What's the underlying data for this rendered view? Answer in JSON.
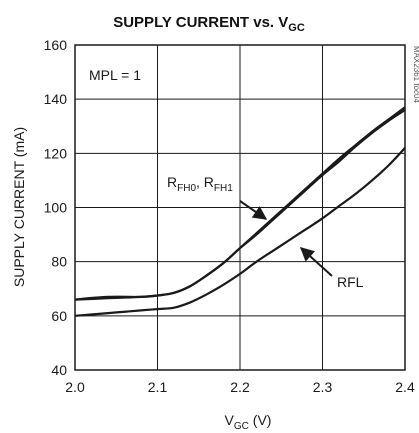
{
  "chart_data": {
    "type": "line",
    "title": {
      "main": "SUPPLY CURRENT vs. V",
      "sub": "GC"
    },
    "xlabel": {
      "main": "V",
      "sub": "GC",
      "suffix": " (V)"
    },
    "ylabel": "SUPPLY CURRENT (mA)",
    "xlim": [
      2.0,
      2.4
    ],
    "ylim": [
      40,
      160
    ],
    "xticks": [
      "2.0",
      "2.1",
      "2.2",
      "2.3",
      "2.4"
    ],
    "yticks": [
      "40",
      "60",
      "80",
      "100",
      "120",
      "140",
      "160"
    ],
    "grid": true,
    "legend": "none",
    "condition_label": "MPL = 1",
    "figure_id": "MAX2361 toc04",
    "series": [
      {
        "x": [
          2.0,
          2.04,
          2.08,
          2.1,
          2.12,
          2.14,
          2.16,
          2.18,
          2.2,
          2.22,
          2.24,
          2.26,
          2.28,
          2.3,
          2.32,
          2.34,
          2.36,
          2.38,
          2.4
        ],
        "y": [
          66,
          66.5,
          67,
          67.5,
          68.5,
          71,
          75,
          79.5,
          85,
          90,
          95.5,
          101,
          106.5,
          112,
          117,
          122.5,
          127.5,
          132,
          136
        ]
      },
      {
        "x": [
          2.0,
          2.04,
          2.08,
          2.1,
          2.12,
          2.14,
          2.16,
          2.18,
          2.2,
          2.22,
          2.24,
          2.26,
          2.28,
          2.3,
          2.32,
          2.34,
          2.36,
          2.38,
          2.4
        ],
        "y": [
          66,
          67,
          67,
          67.5,
          68.5,
          71,
          75,
          79.5,
          85,
          90.5,
          96,
          101.5,
          107,
          112.5,
          118,
          123,
          128,
          132.5,
          137
        ]
      },
      {
        "x": [
          2.0,
          2.04,
          2.08,
          2.1,
          2.12,
          2.14,
          2.16,
          2.18,
          2.2,
          2.22,
          2.24,
          2.26,
          2.28,
          2.3,
          2.32,
          2.34,
          2.36,
          2.38,
          2.4
        ],
        "y": [
          60,
          61,
          62,
          62.5,
          63,
          65,
          68,
          71.5,
          75.5,
          80,
          84,
          88,
          92,
          96,
          100.5,
          105,
          110,
          115.5,
          122
        ]
      }
    ],
    "annotations": [
      {
        "parts": [
          {
            "text": "R",
            "sub": false
          },
          {
            "text": "FH0",
            "sub": true
          },
          {
            "text": ", R",
            "sub": false
          },
          {
            "text": "FH1",
            "sub": true
          }
        ]
      },
      {
        "parts": [
          {
            "text": "RFL",
            "sub": false
          }
        ]
      }
    ]
  }
}
